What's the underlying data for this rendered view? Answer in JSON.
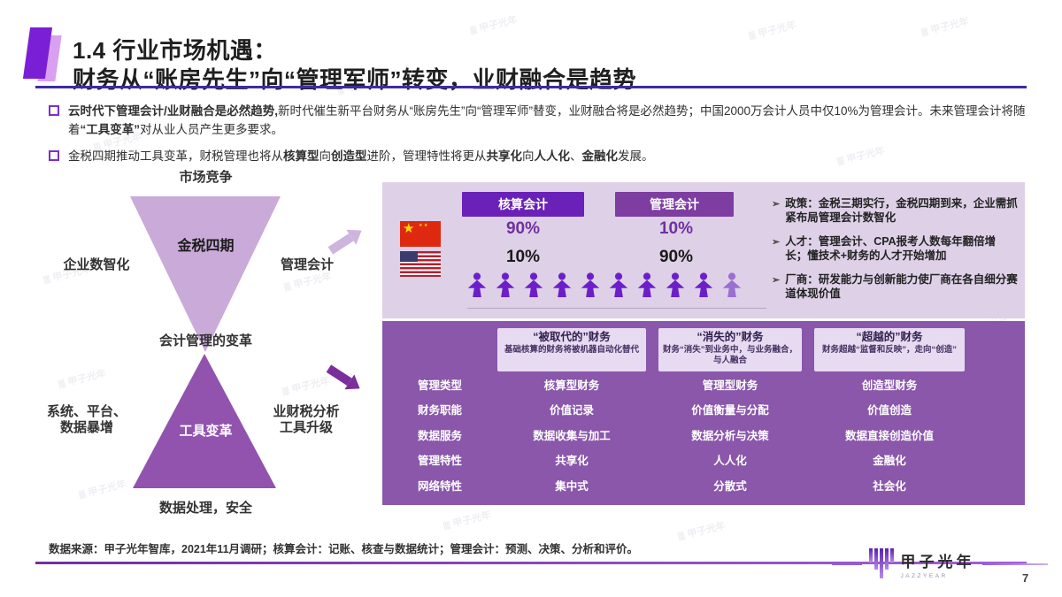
{
  "title": {
    "line1": "1.4 行业市场机遇：",
    "line2": "财务从“账房先生”向“管理军师”转变，业财融合是趋势"
  },
  "bullets": [
    {
      "segments": [
        {
          "t": "云时代下管理会计/业财融合是必然趋势,",
          "b": true
        },
        {
          "t": "新时代催生新平台财务从“账房先生”向“管理军师”替变，业财融合将是必然趋势；中国2000万会计人员中仅10%为管理会计。未来管理会计将随着",
          "b": false
        },
        {
          "t": "“工具变革”",
          "b": true
        },
        {
          "t": "对从业人员产生更多要求。",
          "b": false
        }
      ]
    },
    {
      "segments": [
        {
          "t": "金税四期推动工具变革，财税管理也将从",
          "b": false
        },
        {
          "t": "核算型",
          "b": true
        },
        {
          "t": "向",
          "b": false
        },
        {
          "t": "创造型",
          "b": true
        },
        {
          "t": "进阶，管理特性将更从",
          "b": false
        },
        {
          "t": "共享化",
          "b": true
        },
        {
          "t": "向",
          "b": false
        },
        {
          "t": "人人化",
          "b": true
        },
        {
          "t": "、",
          "b": false
        },
        {
          "t": "金融化",
          "b": true
        },
        {
          "t": "发展。",
          "b": false
        }
      ]
    }
  ],
  "diagram": {
    "top_label": "市场竞争",
    "upper_center": "金税四期",
    "left_label": "企业数智化",
    "right_label": "管理会计",
    "middle_label": "会计管理的变革",
    "lower_center": "工具变革",
    "lower_left_1": "系统、平台、",
    "lower_left_2": "数据暴增",
    "lower_right_1": "业财税分析",
    "lower_right_2": "工具升级",
    "bottom_label": "数据处理，安全"
  },
  "panel_top": {
    "col_headers": [
      "核算会计",
      "管理会计"
    ],
    "china_values": [
      "90%",
      "10%"
    ],
    "usa_values": [
      "10%",
      "90%"
    ],
    "person_count": 10,
    "bullet_points": [
      "政策：金税三期实行，金税四期到来，企业需抓紧布局管理会计数智化",
      "人才：管理会计、CPA报考人数每年翻倍增长；懂技术+财务的人才开始增加",
      "厂商：研发能力与创新能力使厂商在各自细分赛道体现价值"
    ]
  },
  "matrix": {
    "columns": [
      {
        "title": "“被取代的”财务",
        "desc": "基础核算的财务将被机器自动化替代"
      },
      {
        "title": "“消失的”财务",
        "desc": "财务“消失”到业务中，与业务融合，与人融合"
      },
      {
        "title": "“超越的”财务",
        "desc": "财务超越“监督和反映”，走向“创造”"
      }
    ],
    "rows": [
      {
        "label": "管理类型",
        "cells": [
          "核算型财务",
          "管理型财务",
          "创造型财务"
        ]
      },
      {
        "label": "财务职能",
        "cells": [
          "价值记录",
          "价值衡量与分配",
          "价值创造"
        ]
      },
      {
        "label": "数据服务",
        "cells": [
          "数据收集与加工",
          "数据分析与决策",
          "数据直接创造价值"
        ]
      },
      {
        "label": "管理特性",
        "cells": [
          "共享化",
          "人人化",
          "金融化"
        ]
      },
      {
        "label": "网络特性",
        "cells": [
          "集中式",
          "分散式",
          "社会化"
        ]
      }
    ]
  },
  "footer": {
    "source": "数据来源：甲子光年智库，2021年11月调研；核算会计：记账、核查与数据统计；管理会计：预测、决策、分析和评价。",
    "page": "7"
  },
  "logo": {
    "name": "甲子光年",
    "tagline": "JAZZYEAR"
  },
  "watermark": {
    "text": "甲子光年",
    "bars": "||||"
  },
  "icons": {
    "arrow-bullet-icon": "➢",
    "star-icon": "★",
    "square-bullet-icon": "▢",
    "person-icon": "person silhouette"
  },
  "colors": {
    "accent_violet": "#7a1fd6",
    "title_rule": "#3f2aa6",
    "upper_triangle": "#c9aad9",
    "lower_triangle": "#9153ae",
    "panel_bg": "#ddd0e7",
    "chip1": "#6a21b8",
    "chip2": "#7d3da1",
    "percent_purple": "#7030a0",
    "matrix_bg": "#8a57ab",
    "matrix_box": "#e7dbf2"
  }
}
